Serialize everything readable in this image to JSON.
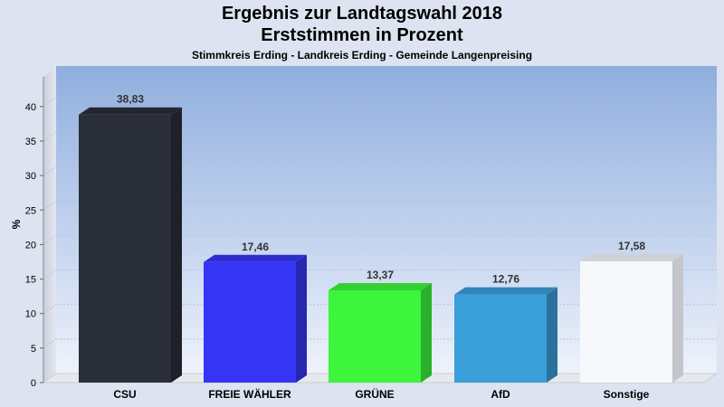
{
  "chart_data": {
    "type": "bar",
    "title": "Ergebnis zur Landtagswahl 2018",
    "subtitle": "Erststimmen in Prozent",
    "subsubtitle": "Stimmkreis Erding - Landkreis Erding - Gemeinde Langenpreising",
    "ylabel": "%",
    "ylim": [
      0,
      45
    ],
    "yticks": [
      0,
      5,
      10,
      15,
      20,
      25,
      30,
      35,
      40
    ],
    "categories": [
      "CSU",
      "FREIE WÄHLER",
      "GRÜNE",
      "AfD",
      "Sonstige"
    ],
    "values": [
      38.83,
      17.46,
      13.37,
      12.76,
      17.58
    ],
    "value_labels": [
      "38,83",
      "17,46",
      "13,37",
      "12,76",
      "17,58"
    ],
    "colors": [
      "#2a2e38",
      "#3535f5",
      "#3cf53c",
      "#3a9ed8",
      "#f6f8fc"
    ],
    "grid": true
  }
}
